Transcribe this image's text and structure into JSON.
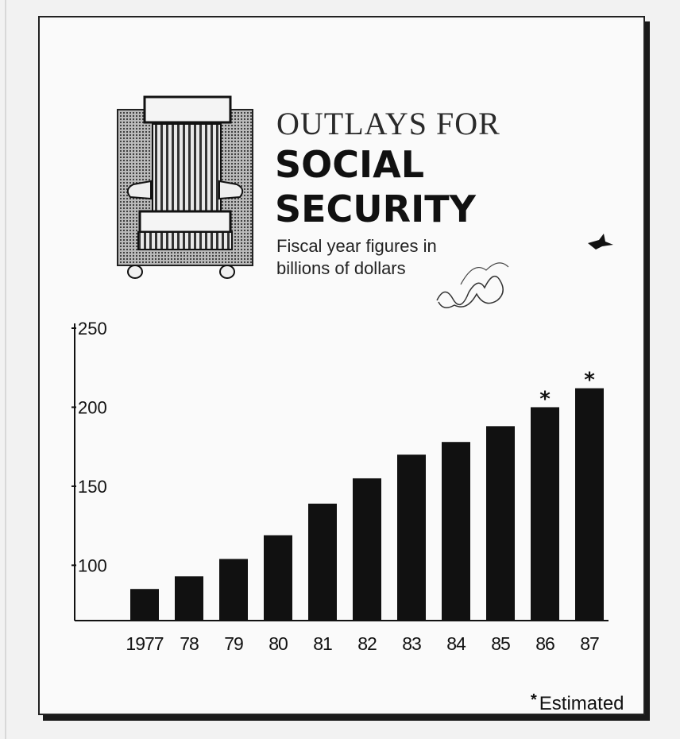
{
  "chart_data": {
    "type": "bar",
    "title": "OUTLAYS FOR",
    "title_emphasis": [
      "SOCIAL",
      "SECURITY"
    ],
    "subtitle_lines": [
      "Fiscal year figures in",
      "billions of dollars"
    ],
    "categories": [
      "1977",
      "78",
      "79",
      "80",
      "81",
      "82",
      "83",
      "84",
      "85",
      "86",
      "87"
    ],
    "values": [
      85,
      93,
      104,
      119,
      139,
      155,
      170,
      178,
      188,
      200,
      212
    ],
    "estimated": [
      false,
      false,
      false,
      false,
      false,
      false,
      false,
      false,
      false,
      true,
      true
    ],
    "ylim": [
      65,
      250
    ],
    "yticks": [
      100,
      150,
      200,
      250
    ],
    "xlabel": "",
    "ylabel": "",
    "grid": false,
    "footnote_marker": "*",
    "footnote": "Estimated",
    "bar_color": "#111111"
  },
  "icons": [
    "armchair-icon",
    "scribble-mark",
    "bird-mark"
  ]
}
